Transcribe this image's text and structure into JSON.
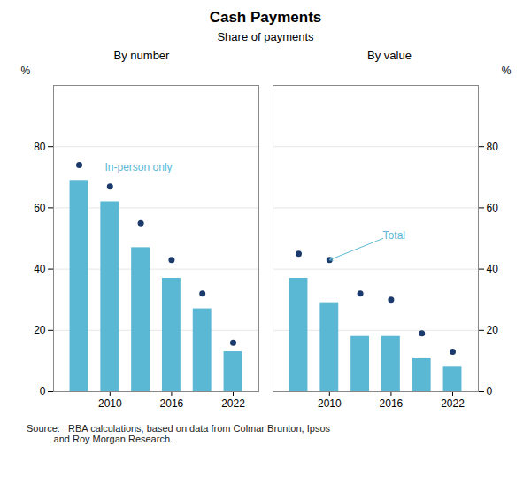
{
  "title": "Cash Payments",
  "subtitle": "Share of payments",
  "source": "Source:   RBA calculations, based on data from Colmar Brunton, Ipsos\n          and Roy Morgan Research.",
  "chart_data": [
    {
      "type": "bar",
      "title": "By number",
      "x": [
        2007,
        2010,
        2013,
        2016,
        2019,
        2022
      ],
      "series": [
        {
          "type": "bar",
          "color": "#5BB8D4",
          "values": [
            69,
            62,
            47,
            37,
            27,
            13
          ]
        },
        {
          "type": "scatter",
          "color": "#1B3A6B",
          "values": [
            74,
            67,
            55,
            43,
            32,
            16
          ]
        }
      ],
      "xlim": [
        2004.5,
        2024.5
      ],
      "xticks": [
        2010,
        2016,
        2022
      ],
      "ylim": [
        0,
        100
      ],
      "yticks": [
        0,
        20,
        40,
        60,
        80
      ],
      "ylabel": "%",
      "grid": true,
      "annotations": [
        {
          "text": "In-person only",
          "x": 2009.5,
          "y": 72,
          "color": "#5BB8D4"
        }
      ]
    },
    {
      "type": "bar",
      "title": "By value",
      "x": [
        2007,
        2010,
        2013,
        2016,
        2019,
        2022
      ],
      "series": [
        {
          "type": "bar",
          "color": "#5BB8D4",
          "values": [
            37,
            29,
            18,
            18,
            11,
            8
          ]
        },
        {
          "type": "scatter",
          "color": "#1B3A6B",
          "values": [
            45,
            43,
            32,
            30,
            19,
            13
          ]
        }
      ],
      "xlim": [
        2004.5,
        2024.5
      ],
      "xticks": [
        2010,
        2016,
        2022
      ],
      "ylim": [
        0,
        100
      ],
      "yticks": [
        0,
        20,
        40,
        60,
        80
      ],
      "ylabel": "%",
      "grid": true,
      "annotations": [
        {
          "text": "Total",
          "x": 2015.2,
          "y": 50,
          "color": "#5BB8D4",
          "arrow_to": [
            2010,
            43
          ]
        }
      ]
    }
  ]
}
